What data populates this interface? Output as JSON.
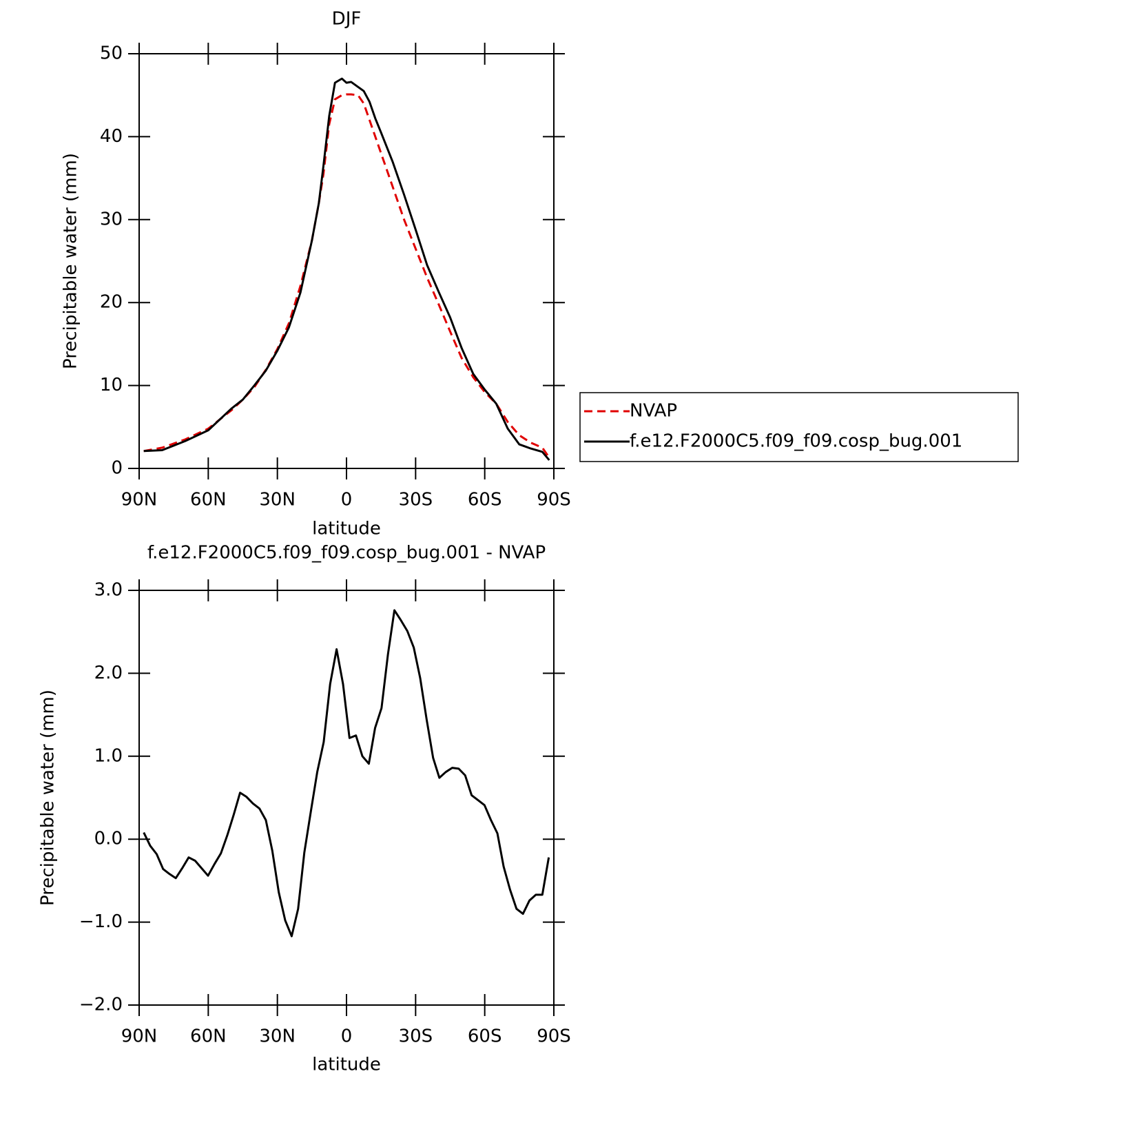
{
  "chart_data": [
    {
      "type": "line",
      "title": "DJF",
      "x_label": "latitude",
      "y_label": "Precipitable water (mm)",
      "x": [
        88,
        80,
        70,
        60,
        50,
        45,
        40,
        35,
        30,
        25,
        20,
        15,
        12,
        10,
        7.5,
        5,
        2,
        0,
        -2,
        -5,
        -7.5,
        -10,
        -12.5,
        -15,
        -20,
        -25,
        -30,
        -35,
        -40,
        -45,
        -50,
        -55,
        -60,
        -65,
        -70,
        -75,
        -80,
        -85,
        -88
      ],
      "series": [
        {
          "name": "NVAP",
          "color": "#e00000",
          "line_style": "dashed",
          "values": [
            2.1,
            2.5,
            3.5,
            4.8,
            7.0,
            8.3,
            9.8,
            11.9,
            14.4,
            17.5,
            22.0,
            27.5,
            32,
            35.5,
            41.5,
            44.5,
            45.0,
            45.1,
            45.1,
            45.0,
            44.0,
            42.0,
            40.0,
            38.0,
            34.0,
            30.0,
            26.5,
            23.0,
            19.8,
            16.5,
            13.3,
            11.0,
            9.2,
            7.8,
            5.6,
            4.0,
            3.1,
            2.5,
            1.3
          ]
        },
        {
          "name": "f.e12.F2000C5.f09_f09.cosp_bug.001",
          "color": "#000000",
          "line_style": "solid",
          "values": [
            2.1,
            2.2,
            3.3,
            4.6,
            7.2,
            8.3,
            10.0,
            11.8,
            14.2,
            17.0,
            21.2,
            27.5,
            32,
            36.5,
            42.5,
            46.5,
            47.0,
            46.5,
            46.6,
            46.0,
            45.5,
            44.2,
            42.2,
            40.5,
            37,
            33,
            28.8,
            24.5,
            21.3,
            18.2,
            14.5,
            11.4,
            9.5,
            7.8,
            4.8,
            2.9,
            2.4,
            2.0,
            1.0
          ]
        }
      ],
      "xlim": [
        90,
        -90
      ],
      "xticks": [
        {
          "value": 90,
          "label": "90N"
        },
        {
          "value": 60,
          "label": "60N"
        },
        {
          "value": 30,
          "label": "30N"
        },
        0,
        {
          "value": -30,
          "label": "30S"
        },
        {
          "value": -60,
          "label": "60S"
        },
        {
          "value": -90,
          "label": "90S"
        }
      ],
      "ylim": [
        0,
        50
      ],
      "yticks": [
        0,
        10,
        20,
        30,
        40,
        50
      ],
      "legend": "right"
    },
    {
      "type": "line",
      "title": "f.e12.F2000C5.f09_f09.cosp_bug.001 - NVAP",
      "x_label": "latitude",
      "y_label": "Precipitable water (mm)",
      "x": [
        88.0,
        85.2,
        82.4,
        79.6,
        76.8,
        74.1,
        71.3,
        68.5,
        65.7,
        62.9,
        60.1,
        57.3,
        54.5,
        51.7,
        48.9,
        46.2,
        43.4,
        40.6,
        37.8,
        35.0,
        32.2,
        29.4,
        26.6,
        23.8,
        21.0,
        18.3,
        15.5,
        12.7,
        9.9,
        7.1,
        4.3,
        1.5,
        -1.3,
        -4.1,
        -6.9,
        -9.7,
        -12.4,
        -15.2,
        -18.0,
        -20.8,
        -23.6,
        -26.4,
        -29.2,
        -32.0,
        -34.8,
        -37.6,
        -40.3,
        -43.1,
        -45.9,
        -48.7,
        -51.5,
        -54.3,
        -57.1,
        -59.9,
        -62.7,
        -65.5,
        -68.2,
        -71.0,
        -73.8,
        -76.6,
        -79.4,
        -82.2,
        -85.0,
        -87.8
      ],
      "series": [
        {
          "color": "#000000",
          "line_style": "solid",
          "values": [
            0.08,
            -0.08,
            -0.18,
            -0.36,
            -0.42,
            -0.47,
            -0.35,
            -0.22,
            -0.26,
            -0.35,
            -0.44,
            -0.3,
            -0.17,
            0.05,
            0.3,
            0.56,
            0.51,
            0.43,
            0.37,
            0.23,
            -0.14,
            -0.64,
            -0.98,
            -1.17,
            -0.84,
            -0.16,
            0.33,
            0.81,
            1.17,
            1.87,
            2.29,
            1.87,
            1.22,
            1.25,
            1.0,
            0.91,
            1.34,
            1.58,
            2.23,
            2.76,
            2.64,
            2.51,
            2.31,
            1.94,
            1.44,
            0.98,
            0.74,
            0.81,
            0.86,
            0.85,
            0.77,
            0.53,
            0.47,
            0.41,
            0.23,
            0.07,
            -0.33,
            -0.61,
            -0.84,
            -0.9,
            -0.74,
            -0.67,
            -0.67,
            -0.22
          ]
        }
      ],
      "xlim": [
        90,
        -90
      ],
      "xticks": [
        {
          "value": 90,
          "label": "90N"
        },
        {
          "value": 60,
          "label": "60N"
        },
        {
          "value": 30,
          "label": "30N"
        },
        0,
        {
          "value": -30,
          "label": "30S"
        },
        {
          "value": -60,
          "label": "60S"
        },
        {
          "value": -90,
          "label": "90S"
        }
      ],
      "ylim": [
        -2,
        3
      ],
      "yticks": [
        {
          "value": -2,
          "label": "−2.0"
        },
        {
          "value": -1,
          "label": "−1.0"
        },
        {
          "value": 0,
          "label": "0.0"
        },
        {
          "value": 1,
          "label": "1.0"
        },
        {
          "value": 2,
          "label": "2.0"
        },
        {
          "value": 3,
          "label": "3.0"
        }
      ]
    }
  ]
}
